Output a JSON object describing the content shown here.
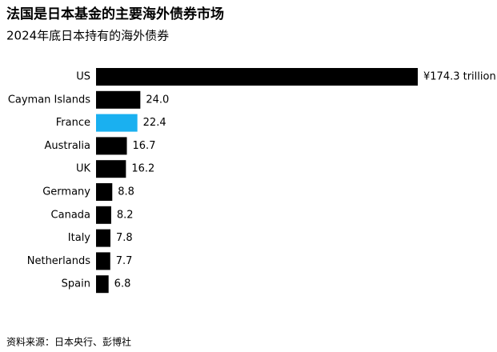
{
  "chart_data": {
    "type": "hbar",
    "title": "法国是日本基金的主要海外债券市场",
    "subtitle": "2024年底日本持有的海外债券",
    "categories": [
      "US",
      "Cayman Islands",
      "France",
      "Australia",
      "UK",
      "Germany",
      "Canada",
      "Italy",
      "Netherlands",
      "Spain"
    ],
    "values": [
      174.3,
      24.0,
      22.4,
      16.7,
      16.2,
      8.8,
      8.2,
      7.8,
      7.7,
      6.8
    ],
    "value_labels": [
      "¥174.3 trillion",
      "24.0",
      "22.4",
      "16.7",
      "16.2",
      "8.8",
      "8.2",
      "7.8",
      "7.7",
      "6.8"
    ],
    "colors": [
      "#000000",
      "#000000",
      "#1ab0f0",
      "#000000",
      "#000000",
      "#000000",
      "#000000",
      "#000000",
      "#000000",
      "#000000"
    ],
    "source": "资料来源：日本央行、彭博社"
  }
}
